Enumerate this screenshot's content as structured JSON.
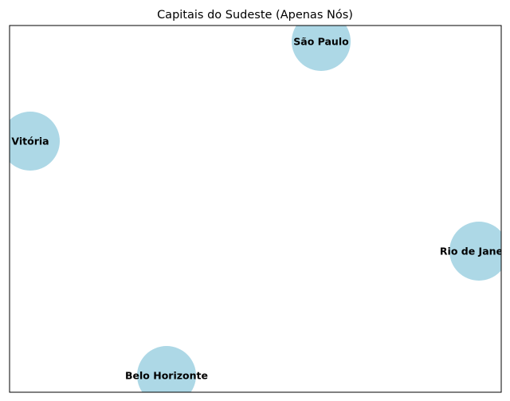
{
  "title": "Capitais do Sudeste (Apenas Nós)",
  "node_color": "#add8e6",
  "nodes": [
    {
      "label": "São Paulo"
    },
    {
      "label": "Vitória"
    },
    {
      "label": "Rio de Janeiro"
    },
    {
      "label": "Belo Horizonte"
    }
  ]
}
